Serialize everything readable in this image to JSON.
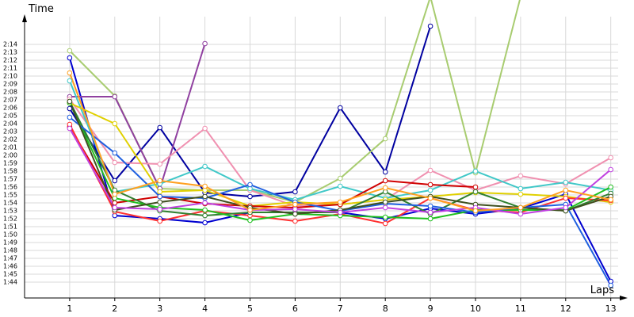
{
  "chart_data": {
    "type": "line",
    "y_label": "Time",
    "x_label": "Laps",
    "x": [
      1,
      2,
      3,
      4,
      5,
      6,
      7,
      8,
      9,
      10,
      11,
      12,
      13
    ],
    "xlim": [
      0,
      13.35
    ],
    "xticks": [
      1,
      2,
      3,
      4,
      5,
      6,
      7,
      8,
      9,
      10,
      11,
      12,
      13
    ],
    "ylim": [
      102,
      137.5
    ],
    "yticks": [
      {
        "value": 104,
        "label": "1:44"
      },
      {
        "value": 105,
        "label": "1:45"
      },
      {
        "value": 106,
        "label": "1:46"
      },
      {
        "value": 107,
        "label": "1:47"
      },
      {
        "value": 108,
        "label": "1:48"
      },
      {
        "value": 109,
        "label": "1:49"
      },
      {
        "value": 110,
        "label": "1:50"
      },
      {
        "value": 111,
        "label": "1:51"
      },
      {
        "value": 112,
        "label": "1:52"
      },
      {
        "value": 113,
        "label": "1:53"
      },
      {
        "value": 114,
        "label": "1:54"
      },
      {
        "value": 115,
        "label": "1:55"
      },
      {
        "value": 116,
        "label": "1:56"
      },
      {
        "value": 117,
        "label": "1:57"
      },
      {
        "value": 118,
        "label": "1:58"
      },
      {
        "value": 119,
        "label": "1:59"
      },
      {
        "value": 120,
        "label": "2:00"
      },
      {
        "value": 121,
        "label": "2:01"
      },
      {
        "value": 122,
        "label": "2:02"
      },
      {
        "value": 123,
        "label": "2:03"
      },
      {
        "value": 124,
        "label": "2:04"
      },
      {
        "value": 125,
        "label": "2:05"
      },
      {
        "value": 126,
        "label": "2:06"
      },
      {
        "value": 127,
        "label": "2:07"
      },
      {
        "value": 128,
        "label": "2:08"
      },
      {
        "value": 129,
        "label": "2:09"
      },
      {
        "value": 130,
        "label": "2:10"
      },
      {
        "value": 131,
        "label": "2:11"
      },
      {
        "value": 132,
        "label": "2:12"
      },
      {
        "value": 133,
        "label": "2:13"
      },
      {
        "value": 134,
        "label": "2:14"
      }
    ],
    "grid": true,
    "series": [
      {
        "color": "#0000d0",
        "values": [
          132.3,
          112.4,
          112,
          111.5,
          112.8,
          112.8,
          112.8,
          112,
          113.3,
          112.6,
          113.3,
          115.1,
          104.1
        ]
      },
      {
        "color": "#0000a0",
        "values": [
          125.9,
          116.8,
          123.5,
          115.3,
          114.8,
          115.4,
          126,
          117.9,
          136.3,
          null,
          null,
          null,
          null
        ]
      },
      {
        "color": "#a8cc70",
        "values": [
          133.2,
          127.5,
          115.8,
          115.6,
          115.6,
          114.1,
          117.1,
          122.1,
          140,
          117.8,
          140,
          null,
          null
        ]
      },
      {
        "color": "#9040a0",
        "values": [
          127.4,
          127.4,
          115.8,
          134.1,
          null,
          null,
          null,
          null,
          null,
          null,
          null,
          null,
          null
        ]
      },
      {
        "color": "#f090b0",
        "values": [
          127.1,
          119.1,
          118.9,
          123.4,
          115.6,
          113.6,
          113.8,
          114.4,
          118.1,
          115.6,
          117.4,
          116.4,
          119.7
        ]
      },
      {
        "color": "#40c8c8",
        "values": [
          129.4,
          115.4,
          116.4,
          118.6,
          115.8,
          114.4,
          116.1,
          114.6,
          115.6,
          118,
          115.8,
          116.6,
          115.6
        ]
      },
      {
        "color": "#e0d000",
        "values": [
          126.6,
          124,
          115.4,
          115.6,
          113.6,
          114.1,
          113.8,
          114.4,
          114.8,
          115.3,
          115.1,
          114.8,
          114.1
        ]
      },
      {
        "color": "#d00000",
        "values": [
          123.6,
          114,
          114.8,
          113.9,
          113.6,
          113.4,
          113.8,
          116.8,
          116.3,
          116,
          null,
          null,
          null
        ]
      },
      {
        "color": "#ff3030",
        "values": [
          123.9,
          112.9,
          111.7,
          113,
          112.4,
          111.7,
          112.6,
          111.4,
          114.6,
          113.1,
          112.8,
          114.6,
          114.3
        ]
      },
      {
        "color": "#308030",
        "values": [
          126.8,
          115.6,
          113,
          112.4,
          112.8,
          112.8,
          112.8,
          115.4,
          112.6,
          115.4,
          113.4,
          113,
          115.2
        ]
      },
      {
        "color": "#20c020",
        "values": [
          126.6,
          114.6,
          113.4,
          113.1,
          111.8,
          112.6,
          112.4,
          112.2,
          112,
          113.1,
          113.1,
          113.1,
          116
        ]
      },
      {
        "color": "#2060e0",
        "values": [
          124.8,
          120.3,
          114.8,
          114.6,
          116.3,
          114.1,
          113,
          113.9,
          113.6,
          112.8,
          113.4,
          113.8,
          103.6
        ]
      },
      {
        "color": "#405020",
        "values": [
          126.8,
          113.1,
          114.1,
          114.8,
          113.4,
          112.6,
          113.1,
          114.1,
          114.8,
          113.8,
          113.4,
          113,
          114.8
        ]
      },
      {
        "color": "#c040e0",
        "values": [
          123.4,
          113.4,
          113.2,
          114,
          113.1,
          113.2,
          112.8,
          113.4,
          112.8,
          113.4,
          112.6,
          113.4,
          118.2
        ]
      },
      {
        "color": "#ffa020",
        "values": [
          130.4,
          115.1,
          116.8,
          116.1,
          113.1,
          113.8,
          114.1,
          115.9,
          114.6,
          113,
          113.4,
          115.6,
          114.4
        ]
      }
    ]
  }
}
